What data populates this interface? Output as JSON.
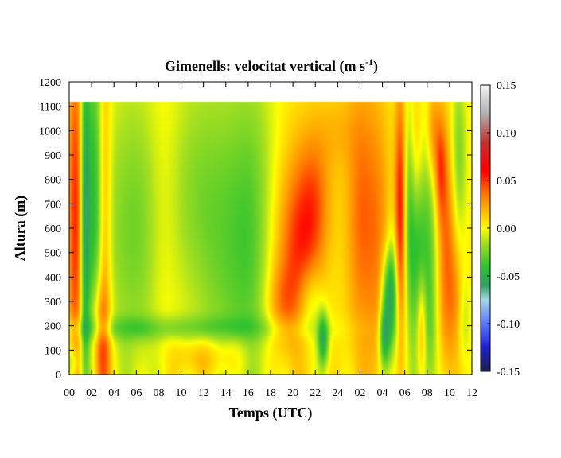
{
  "chart_data": {
    "type": "heatmap",
    "title": "Gimenells: velocitat vertical (m s",
    "title_unit_exponent": "-1",
    "title_close": ")",
    "xlabel": "Temps (UTC)",
    "ylabel": "Altura (m)",
    "x_tick_labels": [
      "00",
      "02",
      "04",
      "06",
      "08",
      "10",
      "12",
      "14",
      "16",
      "18",
      "20",
      "22",
      "24",
      "02",
      "04",
      "06",
      "08",
      "10",
      "12"
    ],
    "x_range_hours": [
      0,
      36
    ],
    "y_ticks": [
      0,
      100,
      200,
      300,
      400,
      500,
      600,
      700,
      800,
      900,
      1000,
      1100,
      1200
    ],
    "y_range": [
      0,
      1200
    ],
    "data_top_height": 1120,
    "colorbar": {
      "ticks": [
        "-0.15",
        "-0.10",
        "-0.05",
        "0.00",
        "0.05",
        "0.10",
        "0.15"
      ],
      "range": [
        -0.15,
        0.15
      ],
      "stops": [
        {
          "v": -0.15,
          "color": "#1e1e4a"
        },
        {
          "v": -0.125,
          "color": "#2020d0"
        },
        {
          "v": -0.1,
          "color": "#5a78ff"
        },
        {
          "v": -0.075,
          "color": "#a6d6e8"
        },
        {
          "v": -0.06,
          "color": "#30a060"
        },
        {
          "v": -0.04,
          "color": "#2fc22f"
        },
        {
          "v": -0.015,
          "color": "#a8e020"
        },
        {
          "v": 0.0,
          "color": "#ffff00"
        },
        {
          "v": 0.015,
          "color": "#ffc400"
        },
        {
          "v": 0.035,
          "color": "#ff7a00"
        },
        {
          "v": 0.06,
          "color": "#ff0000"
        },
        {
          "v": 0.09,
          "color": "#c03030"
        },
        {
          "v": 0.12,
          "color": "#b0b0b0"
        },
        {
          "v": 0.15,
          "color": "#f4f4f4"
        }
      ]
    },
    "features": [
      {
        "t": 0.6,
        "z": 650,
        "st": 0.5,
        "sz": 500,
        "a": 0.05
      },
      {
        "t": 1.4,
        "z": 650,
        "st": 0.3,
        "sz": 550,
        "a": -0.06
      },
      {
        "t": 2.2,
        "z": 700,
        "st": 0.5,
        "sz": 600,
        "a": -0.04
      },
      {
        "t": 2.8,
        "z": 100,
        "st": 0.6,
        "sz": 200,
        "a": 0.05
      },
      {
        "t": 0.3,
        "z": 50,
        "st": 0.4,
        "sz": 60,
        "a": -0.03
      },
      {
        "t": 3.2,
        "z": 700,
        "st": 0.4,
        "sz": 450,
        "a": 0.025
      },
      {
        "t": 5.5,
        "z": 600,
        "st": 2.0,
        "sz": 450,
        "a": -0.028
      },
      {
        "t": 8.5,
        "z": 600,
        "st": 1.0,
        "sz": 500,
        "a": 0.012
      },
      {
        "t": 11.0,
        "z": 300,
        "st": 1.6,
        "sz": 250,
        "a": 0.012
      },
      {
        "t": 12.5,
        "z": 550,
        "st": 3.0,
        "sz": 500,
        "a": -0.035
      },
      {
        "t": 16.5,
        "z": 550,
        "st": 1.5,
        "sz": 500,
        "a": -0.025
      },
      {
        "t": 8.0,
        "z": 190,
        "st": 9.0,
        "sz": 35,
        "a": -0.022
      },
      {
        "t": 11.5,
        "z": 60,
        "st": 1.5,
        "sz": 70,
        "a": 0.022
      },
      {
        "t": 14.5,
        "z": 70,
        "st": 1.5,
        "sz": 70,
        "a": 0.018
      },
      {
        "t": 18.5,
        "z": 450,
        "st": 1.2,
        "sz": 300,
        "a": 0.015
      },
      {
        "t": 19.0,
        "z": 300,
        "st": 1.0,
        "sz": 100,
        "a": 0.018
      },
      {
        "t": 20.0,
        "z": 500,
        "st": 1.0,
        "sz": 300,
        "a": 0.022
      },
      {
        "t": 21.8,
        "z": 700,
        "st": 1.1,
        "sz": 220,
        "a": 0.038
      },
      {
        "t": 21.0,
        "z": 450,
        "st": 1.0,
        "sz": 200,
        "a": 0.02
      },
      {
        "t": 24.0,
        "z": 1000,
        "st": 1.2,
        "sz": 120,
        "a": 0.012
      },
      {
        "t": 22.7,
        "z": 140,
        "st": 0.35,
        "sz": 80,
        "a": -0.055
      },
      {
        "t": 21.5,
        "z": 300,
        "st": 0.8,
        "sz": 120,
        "a": -0.025
      },
      {
        "t": 26.2,
        "z": 650,
        "st": 1.0,
        "sz": 400,
        "a": 0.035
      },
      {
        "t": 27.8,
        "z": 500,
        "st": 0.7,
        "sz": 450,
        "a": 0.02
      },
      {
        "t": 28.5,
        "z": 350,
        "st": 0.45,
        "sz": 120,
        "a": -0.045
      },
      {
        "t": 28.2,
        "z": 150,
        "st": 0.35,
        "sz": 100,
        "a": -0.06
      },
      {
        "t": 29.6,
        "z": 650,
        "st": 0.35,
        "sz": 350,
        "a": 0.055
      },
      {
        "t": 29.0,
        "z": 300,
        "st": 0.4,
        "sz": 200,
        "a": -0.035
      },
      {
        "t": 30.4,
        "z": 700,
        "st": 0.35,
        "sz": 300,
        "a": -0.03
      },
      {
        "t": 31.2,
        "z": 500,
        "st": 0.6,
        "sz": 350,
        "a": -0.045
      },
      {
        "t": 31.5,
        "z": 200,
        "st": 0.3,
        "sz": 150,
        "a": 0.04
      },
      {
        "t": 32.3,
        "z": 350,
        "st": 0.5,
        "sz": 500,
        "a": -0.03
      },
      {
        "t": 33.2,
        "z": 850,
        "st": 0.35,
        "sz": 150,
        "a": 0.035
      },
      {
        "t": 33.8,
        "z": 500,
        "st": 0.6,
        "sz": 350,
        "a": 0.035
      },
      {
        "t": 34.8,
        "z": 900,
        "st": 0.5,
        "sz": 250,
        "a": -0.03
      },
      {
        "t": 34.9,
        "z": 300,
        "st": 0.6,
        "sz": 150,
        "a": 0.02
      },
      {
        "t": 31.0,
        "z": 900,
        "st": 0.5,
        "sz": 200,
        "a": 0.025
      },
      {
        "t": 32.5,
        "z": 1000,
        "st": 0.4,
        "sz": 150,
        "a": 0.03
      },
      {
        "t": 35.3,
        "z": 250,
        "st": 0.4,
        "sz": 150,
        "a": -0.025
      }
    ]
  }
}
